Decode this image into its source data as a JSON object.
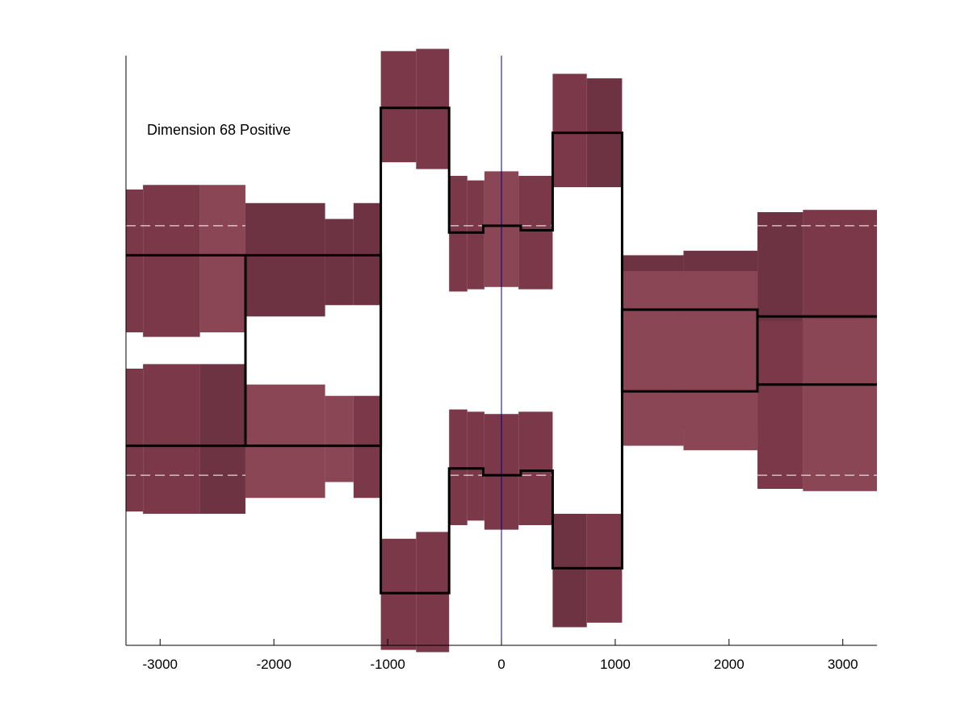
{
  "chart_data": {
    "type": "line",
    "annotation": "Dimension 68 Positive",
    "xlim": [
      -3300,
      3300
    ],
    "ylim": [
      -1.3,
      1.3
    ],
    "xticks": [
      -3000,
      -2000,
      -1000,
      0,
      1000,
      2000,
      3000
    ],
    "xtick_labels": [
      "-3000",
      "-2000",
      "-1000",
      "0",
      "1000",
      "2000",
      "3000"
    ],
    "grid": false,
    "vertical_line_x": 0,
    "reference_levels": [
      0.55,
      -0.55
    ],
    "colors": {
      "band": "#7a3848",
      "band_light": "#8a4654",
      "band_dark": "#6e3342",
      "line": "#000000",
      "reference": "#ffffff",
      "vline": "#00008b"
    },
    "series": [
      {
        "steps": [
          {
            "x0": -3300,
            "x1": -2250,
            "y": 0.42
          },
          {
            "x0": -2250,
            "x1": -1060,
            "y": -0.42
          },
          {
            "x0": -1060,
            "x1": -460,
            "y": 1.07
          },
          {
            "x0": -460,
            "x1": -160,
            "y": 0.52
          },
          {
            "x0": -160,
            "x1": 170,
            "y": 0.55
          },
          {
            "x0": 170,
            "x1": 450,
            "y": 0.53
          },
          {
            "x0": 450,
            "x1": 1060,
            "y": 0.96
          },
          {
            "x0": 1060,
            "x1": 2250,
            "y": -0.18
          },
          {
            "x0": 2250,
            "x1": 3300,
            "y": 0.15
          }
        ]
      },
      {
        "steps": [
          {
            "x0": -3300,
            "x1": -2250,
            "y": -0.42
          },
          {
            "x0": -2250,
            "x1": -1060,
            "y": 0.42
          },
          {
            "x0": -1060,
            "x1": -460,
            "y": -1.07
          },
          {
            "x0": -460,
            "x1": -160,
            "y": -0.52
          },
          {
            "x0": -160,
            "x1": 170,
            "y": -0.55
          },
          {
            "x0": 170,
            "x1": 450,
            "y": -0.53
          },
          {
            "x0": 450,
            "x1": 1060,
            "y": -0.96
          },
          {
            "x0": 1060,
            "x1": 2250,
            "y": 0.18
          },
          {
            "x0": 2250,
            "x1": 3300,
            "y": -0.15
          }
        ]
      }
    ],
    "bands": [
      {
        "x0": -3300,
        "x1": -3150,
        "lo": 0.08,
        "hi": 0.71,
        "shade": "band"
      },
      {
        "x0": -3150,
        "x1": -2650,
        "lo": 0.06,
        "hi": 0.73,
        "shade": "band"
      },
      {
        "x0": -2650,
        "x1": -2250,
        "lo": 0.08,
        "hi": 0.73,
        "shade": "band_light"
      },
      {
        "x0": -2250,
        "x1": -1550,
        "lo": -0.65,
        "hi": -0.15,
        "shade": "band_light"
      },
      {
        "x0": -1550,
        "x1": -1300,
        "lo": -0.58,
        "hi": -0.2,
        "shade": "band_light"
      },
      {
        "x0": -1300,
        "x1": -1060,
        "lo": -0.65,
        "hi": -0.2,
        "shade": "band"
      },
      {
        "x0": -1060,
        "x1": -750,
        "lo": 0.83,
        "hi": 1.32,
        "shade": "band"
      },
      {
        "x0": -750,
        "x1": -460,
        "lo": 0.8,
        "hi": 1.33,
        "shade": "band"
      },
      {
        "x0": -460,
        "x1": -300,
        "lo": 0.26,
        "hi": 0.77,
        "shade": "band"
      },
      {
        "x0": -300,
        "x1": -150,
        "lo": 0.27,
        "hi": 0.75,
        "shade": "band"
      },
      {
        "x0": -150,
        "x1": 150,
        "lo": 0.28,
        "hi": 0.79,
        "shade": "band_light"
      },
      {
        "x0": 150,
        "x1": 450,
        "lo": 0.27,
        "hi": 0.77,
        "shade": "band"
      },
      {
        "x0": 450,
        "x1": 750,
        "lo": 0.72,
        "hi": 1.22,
        "shade": "band"
      },
      {
        "x0": 750,
        "x1": 1060,
        "lo": 0.72,
        "hi": 1.2,
        "shade": "band_dark"
      },
      {
        "x0": 1060,
        "x1": 1600,
        "lo": -0.35,
        "hi": 0.42,
        "shade": "band_dark"
      },
      {
        "x0": 1600,
        "x1": 2250,
        "lo": -0.35,
        "hi": 0.44,
        "shade": "band_dark"
      },
      {
        "x0": 2250,
        "x1": 2650,
        "lo": -0.13,
        "hi": 0.61,
        "shade": "band_dark"
      },
      {
        "x0": 2650,
        "x1": 3300,
        "lo": -0.14,
        "hi": 0.62,
        "shade": "band"
      },
      {
        "x0": -3300,
        "x1": -3150,
        "lo": -0.71,
        "hi": -0.08,
        "shade": "band"
      },
      {
        "x0": -3150,
        "x1": -2650,
        "lo": -0.72,
        "hi": -0.06,
        "shade": "band"
      },
      {
        "x0": -2650,
        "x1": -2250,
        "lo": -0.72,
        "hi": -0.06,
        "shade": "band_dark"
      },
      {
        "x0": -2250,
        "x1": -1550,
        "lo": 0.15,
        "hi": 0.65,
        "shade": "band_dark"
      },
      {
        "x0": -1550,
        "x1": -1300,
        "lo": 0.2,
        "hi": 0.58,
        "shade": "band_dark"
      },
      {
        "x0": -1300,
        "x1": -1060,
        "lo": 0.2,
        "hi": 0.65,
        "shade": "band_dark"
      },
      {
        "x0": -1060,
        "x1": -750,
        "lo": -1.32,
        "hi": -0.83,
        "shade": "band"
      },
      {
        "x0": -750,
        "x1": -460,
        "lo": -1.33,
        "hi": -0.8,
        "shade": "band"
      },
      {
        "x0": -460,
        "x1": -300,
        "lo": -0.77,
        "hi": -0.26,
        "shade": "band"
      },
      {
        "x0": -300,
        "x1": -150,
        "lo": -0.75,
        "hi": -0.27,
        "shade": "band"
      },
      {
        "x0": -150,
        "x1": 150,
        "lo": -0.79,
        "hi": -0.28,
        "shade": "band"
      },
      {
        "x0": 150,
        "x1": 450,
        "lo": -0.77,
        "hi": -0.27,
        "shade": "band"
      },
      {
        "x0": 450,
        "x1": 750,
        "lo": -1.22,
        "hi": -0.72,
        "shade": "band_dark"
      },
      {
        "x0": 750,
        "x1": 1060,
        "lo": -1.2,
        "hi": -0.72,
        "shade": "band"
      },
      {
        "x0": 1060,
        "x1": 1600,
        "lo": -0.42,
        "hi": 0.35,
        "shade": "band_light"
      },
      {
        "x0": 1600,
        "x1": 2250,
        "lo": -0.44,
        "hi": 0.35,
        "shade": "band_light"
      },
      {
        "x0": 2250,
        "x1": 2650,
        "lo": -0.61,
        "hi": 0.13,
        "shade": "band"
      },
      {
        "x0": 2650,
        "x1": 3300,
        "lo": -0.62,
        "hi": 0.14,
        "shade": "band_light"
      }
    ]
  }
}
